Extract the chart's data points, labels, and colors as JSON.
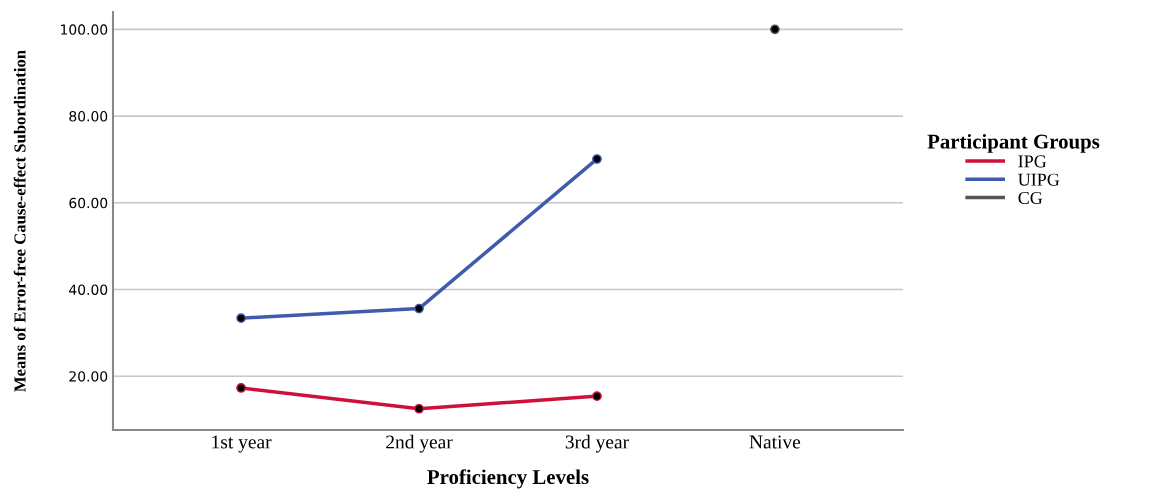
{
  "chart_data": {
    "type": "line",
    "xlabel": "Proficiency Levels",
    "ylabel": "Means of Error-free Cause-effect Subordination",
    "legend_title": "Participant Groups",
    "categories": [
      "1st year",
      "2nd year",
      "3rd year",
      "Native"
    ],
    "series": [
      {
        "name": "IPG",
        "color": "#d0103a",
        "values": [
          17.3,
          12.5,
          15.4,
          null
        ]
      },
      {
        "name": "UIPG",
        "color": "#3f5bab",
        "values": [
          33.4,
          35.6,
          70.1,
          null
        ]
      },
      {
        "name": "CG",
        "color": "#555555",
        "values": [
          null,
          null,
          null,
          100
        ]
      }
    ],
    "ylim": [
      7.6,
      104
    ],
    "yticks": [
      {
        "value": 20,
        "label": "20.00"
      },
      {
        "value": 40,
        "label": "40.00"
      },
      {
        "value": 60,
        "label": "60.00"
      },
      {
        "value": 80,
        "label": "80.00"
      },
      {
        "value": 100,
        "label": "100.00"
      }
    ],
    "grid": "y",
    "legend": "right",
    "marker": "circle",
    "line_style": "solid"
  }
}
